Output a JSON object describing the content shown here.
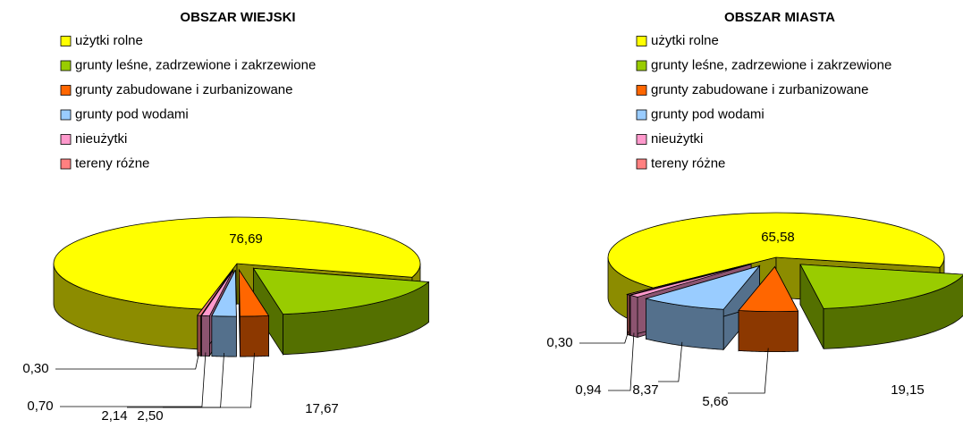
{
  "chart_data": [
    {
      "type": "pie3d",
      "title": "OBSZAR WIEJSKI",
      "categories": [
        "użytki rolne",
        "grunty leśne, zadrzewione i zakrzewione",
        "grunty zabudowane i zurbanizowane",
        "grunty pod wodami",
        "nieużytki",
        "tereny różne"
      ],
      "values": [
        76.69,
        17.67,
        2.5,
        2.14,
        0.7,
        0.3
      ],
      "value_labels": [
        "76,69",
        "17,67",
        "2,50",
        "2,14",
        "0,70",
        "0,30"
      ],
      "colors": [
        "#ffff00",
        "#99cc00",
        "#ff6600",
        "#99ccff",
        "#ff99cc",
        "#ff8080"
      ]
    },
    {
      "type": "pie3d",
      "title": "OBSZAR MIASTA",
      "categories": [
        "użytki rolne",
        "grunty leśne, zadrzewione i zakrzewione",
        "grunty zabudowane i zurbanizowane",
        "grunty pod wodami",
        "nieużytki",
        "tereny różne"
      ],
      "values": [
        65.58,
        19.15,
        5.66,
        8.37,
        0.94,
        0.3
      ],
      "value_labels": [
        "65,58",
        "19,15",
        "5,66",
        "8,37",
        "0,94",
        "0,30"
      ],
      "colors": [
        "#ffff00",
        "#99cc00",
        "#ff6600",
        "#99ccff",
        "#ff99cc",
        "#ff8080"
      ]
    }
  ]
}
